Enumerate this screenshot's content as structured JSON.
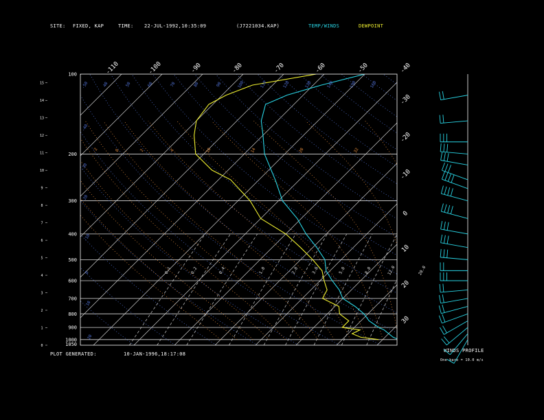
{
  "header": {
    "site_label": "SITE:",
    "site_value": "FIXED, KAP",
    "time_label": "TIME:",
    "time_value": "22-JUL-1992,10:35:09",
    "file_name": "(J7221034.KAP)",
    "legend_temp": "TEMP/WINDS",
    "legend_dew": "DEWPOINT"
  },
  "footer": {
    "plot_label": "PLOT GENERATED:",
    "plot_value": "10-JAN-1996,18:17:08"
  },
  "winds": {
    "title": "WINDS PROFILE",
    "note": "One barb = 10.0 m/s"
  },
  "colors": {
    "temp": "#29d6e6",
    "dew": "#f2f230",
    "grid": "#ffffff",
    "mixing": "#d0d0d0",
    "wet_adiabat": "#e08a3c",
    "dry_adiabat": "#4f6fd0"
  },
  "chart_data": {
    "type": "line",
    "pressure_axis": [
      "1050",
      "1000",
      "900",
      "800",
      "700",
      "600",
      "500",
      "400",
      "300",
      "200",
      "100"
    ],
    "height_axis": [
      "0",
      "1",
      "2",
      "3",
      "4",
      "5",
      "6",
      "7",
      "8",
      "9",
      "10",
      "11",
      "12",
      "13",
      "14",
      "15"
    ],
    "temperature_ticks_top": [
      "-110",
      "-100",
      "-90",
      "-80",
      "-70",
      "-60",
      "-50",
      "-40"
    ],
    "temperature_ticks_right": [
      "-30",
      "-20",
      "-10",
      "0",
      "10",
      "20",
      "30"
    ],
    "mixing_ratio_labels": [
      "0.1",
      "0.2",
      "0.4",
      "1.0",
      "2.0",
      "3.0",
      "5.0",
      "8.0",
      "12.0",
      "20.0"
    ],
    "dry_adiabat_labels": [
      "-50",
      "-40",
      "-30",
      "-20",
      "-10",
      "0",
      "10",
      "20",
      "30",
      "40"
    ],
    "wet_adiabat_labels": [
      "-2",
      "0",
      "2",
      "4",
      "10",
      "14",
      "20",
      "32"
    ],
    "series": [
      {
        "name": "TEMP/WINDS",
        "points": [
          [
            1000,
            24
          ],
          [
            980,
            22
          ],
          [
            950,
            20
          ],
          [
            920,
            18
          ],
          [
            900,
            16
          ],
          [
            850,
            12
          ],
          [
            800,
            9
          ],
          [
            750,
            5
          ],
          [
            700,
            0
          ],
          [
            650,
            -3
          ],
          [
            600,
            -7
          ],
          [
            550,
            -11
          ],
          [
            500,
            -14
          ],
          [
            450,
            -19
          ],
          [
            400,
            -25
          ],
          [
            350,
            -31
          ],
          [
            300,
            -39
          ],
          [
            250,
            -46
          ],
          [
            200,
            -55
          ],
          [
            170,
            -60
          ],
          [
            150,
            -64
          ],
          [
            130,
            -67
          ],
          [
            120,
            -64
          ],
          [
            110,
            -58
          ],
          [
            100,
            -50
          ]
        ]
      },
      {
        "name": "DEWPOINT",
        "points": [
          [
            1000,
            19
          ],
          [
            980,
            14
          ],
          [
            950,
            11
          ],
          [
            920,
            12
          ],
          [
            900,
            7
          ],
          [
            850,
            7
          ],
          [
            800,
            3
          ],
          [
            750,
            1
          ],
          [
            700,
            -5
          ],
          [
            650,
            -6
          ],
          [
            600,
            -9
          ],
          [
            550,
            -12
          ],
          [
            500,
            -17
          ],
          [
            450,
            -23
          ],
          [
            400,
            -30
          ],
          [
            350,
            -40
          ],
          [
            300,
            -47
          ],
          [
            250,
            -57
          ],
          [
            230,
            -64
          ],
          [
            200,
            -72
          ],
          [
            170,
            -77
          ],
          [
            150,
            -80
          ],
          [
            130,
            -81
          ],
          [
            120,
            -79
          ],
          [
            110,
            -75
          ],
          [
            100,
            -62
          ]
        ]
      }
    ],
    "wind_barbs": [
      {
        "p": 1000,
        "dir": 210,
        "spd": 5
      },
      {
        "p": 950,
        "dir": 220,
        "spd": 10
      },
      {
        "p": 900,
        "dir": 230,
        "spd": 15
      },
      {
        "p": 850,
        "dir": 240,
        "spd": 15
      },
      {
        "p": 800,
        "dir": 250,
        "spd": 20
      },
      {
        "p": 750,
        "dir": 255,
        "spd": 20
      },
      {
        "p": 700,
        "dir": 260,
        "spd": 15
      },
      {
        "p": 650,
        "dir": 265,
        "spd": 20
      },
      {
        "p": 600,
        "dir": 270,
        "spd": 25
      },
      {
        "p": 550,
        "dir": 270,
        "spd": 20
      },
      {
        "p": 500,
        "dir": 275,
        "spd": 25
      },
      {
        "p": 450,
        "dir": 280,
        "spd": 30
      },
      {
        "p": 400,
        "dir": 280,
        "spd": 30
      },
      {
        "p": 350,
        "dir": 285,
        "spd": 35
      },
      {
        "p": 300,
        "dir": 285,
        "spd": 35
      },
      {
        "p": 270,
        "dir": 290,
        "spd": 40
      },
      {
        "p": 250,
        "dir": 290,
        "spd": 30
      },
      {
        "p": 220,
        "dir": 280,
        "spd": 25
      },
      {
        "p": 200,
        "dir": 275,
        "spd": 25
      },
      {
        "p": 180,
        "dir": 270,
        "spd": 30
      },
      {
        "p": 150,
        "dir": 265,
        "spd": 20
      },
      {
        "p": 120,
        "dir": 260,
        "spd": 20
      }
    ]
  }
}
